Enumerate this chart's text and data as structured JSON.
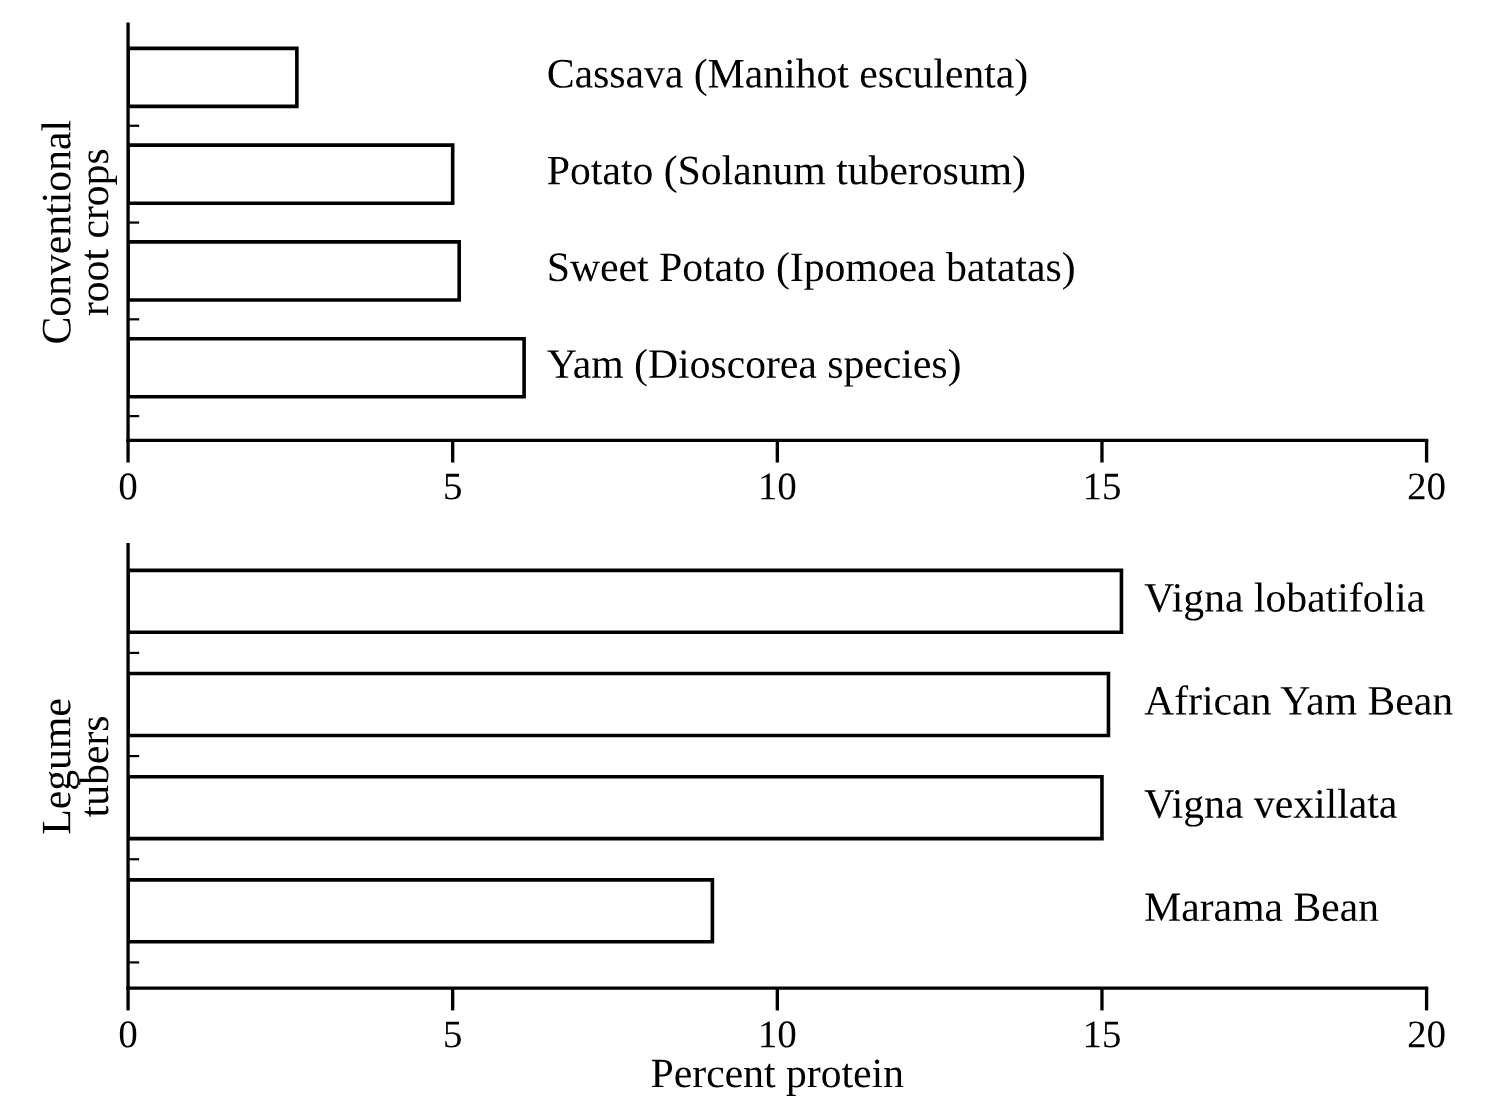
{
  "chart_data": [
    {
      "type": "bar",
      "orientation": "horizontal",
      "ylabel": "Conventional\nroot crops",
      "categories": [
        "Cassava (Manihot esculenta)",
        "Potato (Solanum tuberosum)",
        "Sweet Potato (Ipomoea batatas)",
        "Yam (Dioscorea species)"
      ],
      "values": [
        2.6,
        5.0,
        5.1,
        6.1
      ],
      "color": "#ffffff",
      "xlim": [
        0,
        20
      ],
      "xticks": [
        0,
        5,
        10,
        15,
        20
      ],
      "tick_labels": "x"
    },
    {
      "type": "bar",
      "orientation": "horizontal",
      "ylabel": "Legume\ntubers",
      "xlabel": "Percent protein",
      "categories": [
        "Vigna lobatifolia",
        "African Yam Bean",
        "Vigna vexillata",
        "Marama Bean"
      ],
      "values": [
        15.3,
        15.1,
        15.0,
        9.0
      ],
      "color": "#ffffff",
      "xlim": [
        0,
        20
      ],
      "xticks": [
        0,
        5,
        10,
        15,
        20
      ],
      "tick_labels": "x"
    }
  ]
}
